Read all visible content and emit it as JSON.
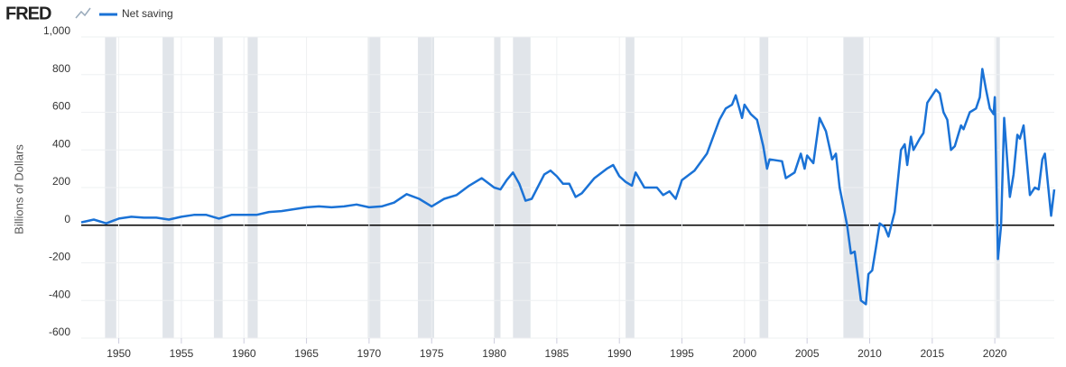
{
  "logo": "FRED",
  "chart_data": {
    "type": "line",
    "y_label": "Billions of Dollars",
    "series": [
      {
        "name": "Net saving",
        "color": "#1a72d6",
        "x": [
          1947,
          1948,
          1949,
          1950,
          1951,
          1952,
          1953,
          1954,
          1955,
          1956,
          1957,
          1958,
          1959,
          1960,
          1961,
          1962,
          1963,
          1964,
          1965,
          1966,
          1967,
          1968,
          1969,
          1970,
          1971,
          1972,
          1973,
          1974,
          1975,
          1975.5,
          1976,
          1977,
          1978,
          1979,
          1980,
          1980.5,
          1981,
          1981.5,
          1982,
          1982.5,
          1983,
          1984,
          1984.5,
          1985,
          1985.5,
          1986,
          1986.5,
          1987,
          1988,
          1989,
          1989.5,
          1990,
          1990.5,
          1991,
          1991.3,
          1992,
          1993,
          1993.5,
          1994,
          1994.5,
          1995,
          1996,
          1997,
          1998,
          1998.5,
          1999,
          1999.3,
          1999.8,
          2000,
          2000.5,
          2001,
          2001.5,
          2001.8,
          2002,
          2003,
          2003.3,
          2004,
          2004.5,
          2004.8,
          2005,
          2005.5,
          2006,
          2006.5,
          2007,
          2007.3,
          2007.6,
          2008.2,
          2008.5,
          2008.8,
          2009.3,
          2009.7,
          2009.9,
          2010.2,
          2010.5,
          2010.8,
          2011.2,
          2011.5,
          2012,
          2012.5,
          2012.8,
          2013,
          2013.3,
          2013.5,
          2014,
          2014.3,
          2014.6,
          2015,
          2015.3,
          2015.6,
          2015.9,
          2016.2,
          2016.5,
          2016.8,
          2017.3,
          2017.5,
          2018,
          2018.5,
          2018.8,
          2019,
          2019.3,
          2019.6,
          2019.9,
          2020,
          2020.25,
          2020.5,
          2020.75,
          2021.2,
          2021.5,
          2021.8,
          2022,
          2022.3,
          2022.8,
          2023.2,
          2023.5,
          2023.8,
          2024,
          2024.5,
          2024.75
        ],
        "values": [
          15,
          30,
          10,
          35,
          45,
          40,
          40,
          30,
          45,
          55,
          55,
          35,
          55,
          55,
          55,
          70,
          75,
          85,
          95,
          100,
          95,
          100,
          110,
          95,
          100,
          120,
          165,
          140,
          100,
          120,
          140,
          160,
          210,
          250,
          200,
          190,
          240,
          280,
          220,
          130,
          140,
          270,
          290,
          260,
          220,
          220,
          150,
          170,
          250,
          300,
          320,
          260,
          230,
          210,
          280,
          200,
          200,
          160,
          180,
          140,
          240,
          290,
          380,
          560,
          620,
          640,
          690,
          570,
          640,
          590,
          560,
          420,
          300,
          350,
          340,
          250,
          280,
          380,
          300,
          370,
          330,
          570,
          500,
          350,
          380,
          200,
          0,
          -150,
          -140,
          -400,
          -420,
          -260,
          -240,
          -120,
          10,
          -10,
          -60,
          70,
          400,
          430,
          320,
          470,
          400,
          460,
          490,
          650,
          690,
          720,
          700,
          600,
          560,
          400,
          420,
          530,
          510,
          600,
          620,
          680,
          830,
          720,
          620,
          590,
          680,
          -180,
          0,
          570,
          150,
          270,
          480,
          460,
          530,
          160,
          200,
          190,
          350,
          380,
          50,
          190
        ]
      }
    ],
    "recessions": [
      [
        1948.9,
        1949.8
      ],
      [
        1953.5,
        1954.4
      ],
      [
        1957.6,
        1958.3
      ],
      [
        1960.3,
        1961.1
      ],
      [
        1969.9,
        1970.9
      ],
      [
        1973.9,
        1975.2
      ],
      [
        1980.0,
        1980.5
      ],
      [
        1981.5,
        1982.9
      ],
      [
        1990.5,
        1991.2
      ],
      [
        2001.2,
        2001.9
      ],
      [
        2007.9,
        2009.5
      ],
      [
        2020.1,
        2020.4
      ]
    ],
    "xlim": [
      1947,
      2024.75
    ],
    "xticks": [
      1950,
      1955,
      1960,
      1965,
      1970,
      1975,
      1980,
      1985,
      1990,
      1995,
      2000,
      2005,
      2010,
      2015,
      2020
    ],
    "ylim": [
      -600,
      1000
    ],
    "yticks": [
      -600,
      -400,
      -200,
      0,
      200,
      400,
      600,
      800,
      {
        "value": 1000,
        "label": "1,000"
      }
    ],
    "grid": true
  }
}
